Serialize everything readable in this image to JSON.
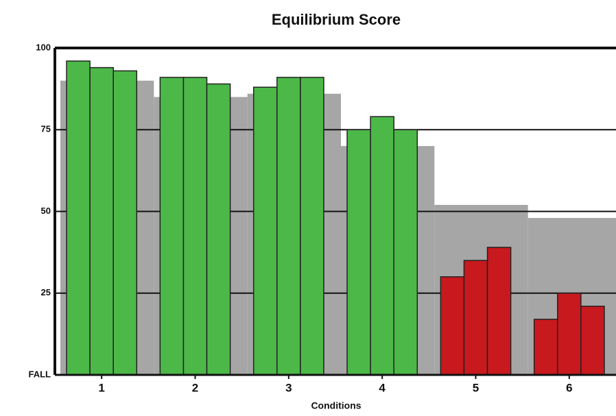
{
  "chart_data": {
    "type": "grouped-bar",
    "title": "Equilibrium Score",
    "x_label": "Conditions",
    "categories": [
      "1",
      "2",
      "3",
      "4",
      "5",
      "6"
    ],
    "values": [
      [
        96,
        94,
        93
      ],
      [
        91,
        91,
        89
      ],
      [
        88,
        91,
        91
      ],
      [
        75,
        79,
        75
      ],
      [
        30,
        35,
        39
      ],
      [
        17,
        25,
        21
      ]
    ],
    "colors": [
      "#4cb848",
      "#4cb848",
      "#4cb848",
      "#4cb848",
      "#c8191e",
      "#c8191e"
    ],
    "norm_values": [
      90,
      85,
      86,
      70,
      52,
      48
    ],
    "norm_color": "#a6a6a6",
    "ylim": [
      0,
      100
    ],
    "yticks": [
      {
        "value": 0,
        "label": "FALL"
      },
      25,
      50,
      75,
      100
    ],
    "grid": true
  }
}
